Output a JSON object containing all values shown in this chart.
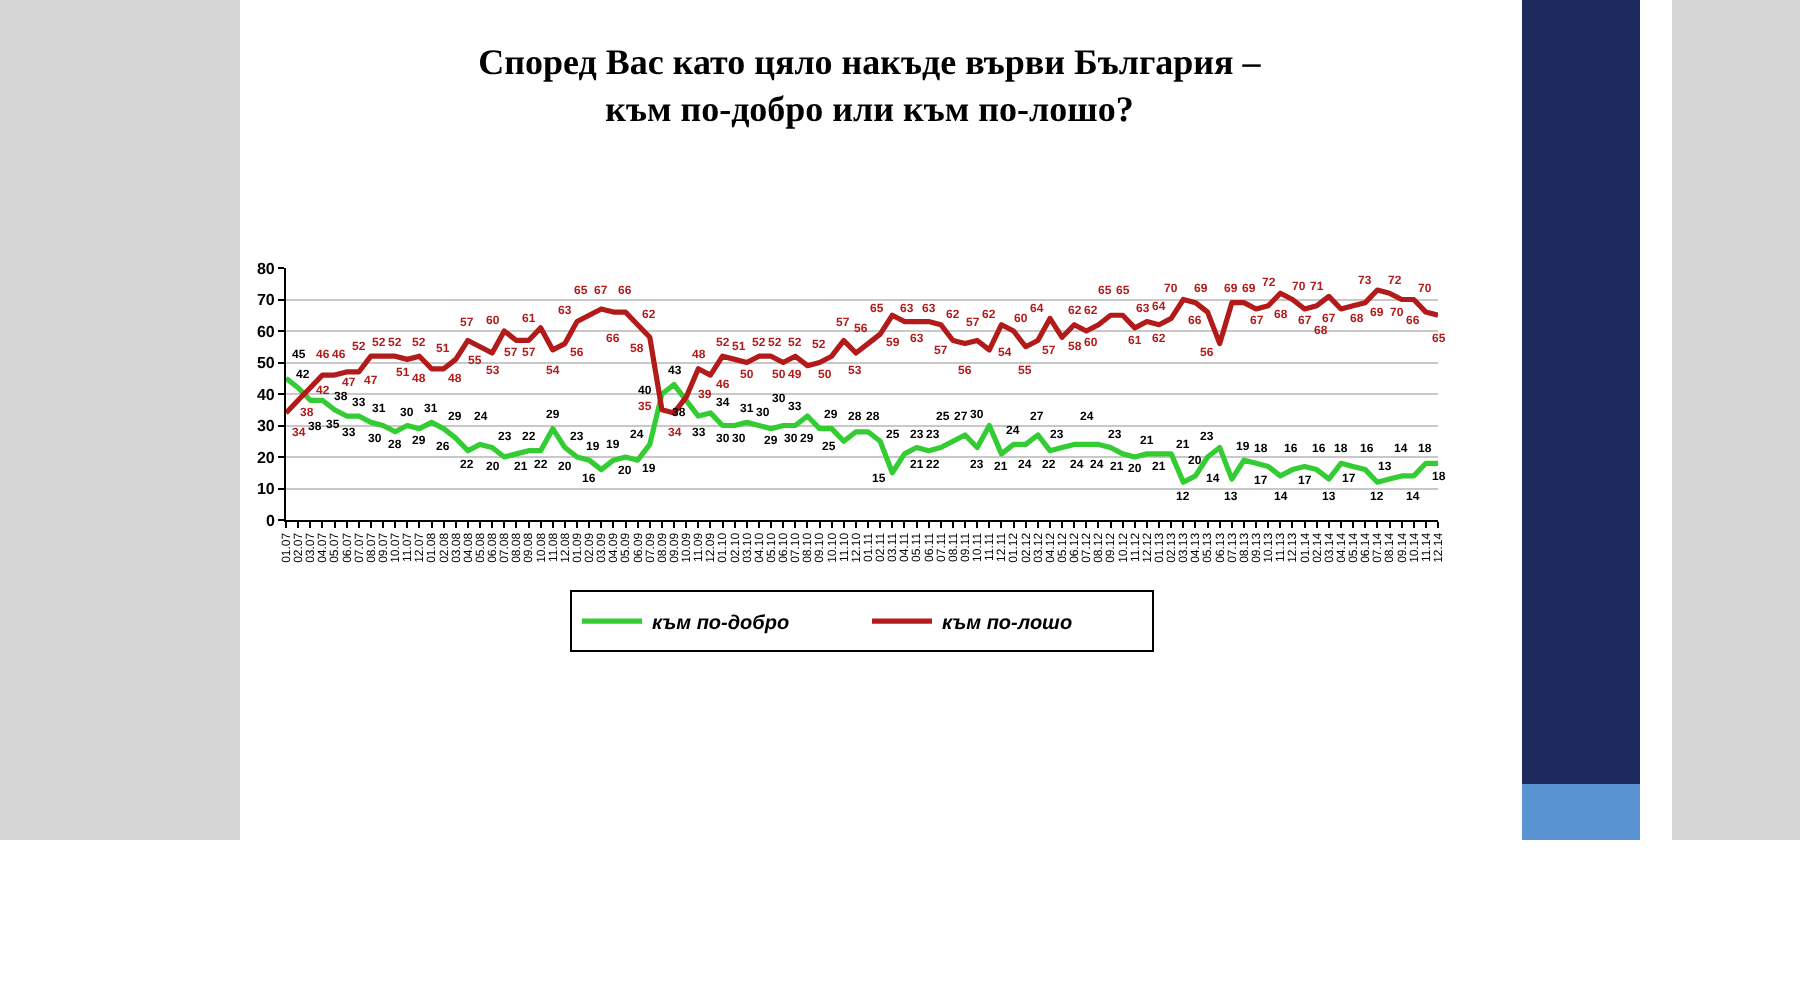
{
  "chart_data": {
    "type": "line",
    "title": "Според Вас като цяло накъде върви България –\nкъм по-добро или към по-лошо?",
    "categories": [
      "01.07",
      "02.07",
      "03.07",
      "04.07",
      "05.07",
      "06.07",
      "07.07",
      "08.07",
      "09.07",
      "10.07",
      "11.07",
      "12.07",
      "01.08",
      "02.08",
      "03.08",
      "04.08",
      "05.08",
      "06.08",
      "07.08",
      "08.08",
      "09.08",
      "10.08",
      "11.08",
      "12.08",
      "01.09",
      "02.09",
      "03.09",
      "04.09",
      "05.09",
      "06.09",
      "07.09",
      "08.09",
      "09.09",
      "10.09",
      "11.09",
      "12.09",
      "01.10",
      "02.10",
      "03.10",
      "04.10",
      "05.10",
      "06.10",
      "07.10",
      "08.10",
      "09.10",
      "10.10",
      "11.10",
      "12.10",
      "01.11",
      "02.11",
      "03.11",
      "04.11",
      "05.11",
      "06.11",
      "07.11",
      "08.11",
      "09.11",
      "10.11",
      "11.11",
      "12.11",
      "01.12",
      "02.12",
      "03.12",
      "04.12",
      "05.12",
      "06.12",
      "07.12",
      "08.12",
      "09.12",
      "10.12",
      "11.12",
      "12.12",
      "01.13",
      "02.13",
      "03.13",
      "04.13",
      "05.13",
      "06.13",
      "07.13",
      "08.13",
      "09.13",
      "10.13",
      "11.13",
      "12.13",
      "01.14",
      "02.14",
      "03.14",
      "04.14",
      "05.14",
      "06.14",
      "07.14",
      "08.14",
      "09.14",
      "10.14",
      "11.14",
      "12.14"
    ],
    "series": [
      {
        "name": "към по-добро",
        "color": "#33cc33",
        "values": [
          45,
          42,
          38,
          38,
          35,
          33,
          33,
          31,
          30,
          28,
          30,
          29,
          31,
          29,
          26,
          22,
          24,
          23,
          20,
          21,
          22,
          22,
          29,
          23,
          20,
          19,
          16,
          19,
          20,
          19,
          24,
          40,
          43,
          38,
          33,
          34,
          30,
          30,
          31,
          30,
          29,
          30,
          30,
          33,
          29,
          29,
          25,
          28,
          28,
          25,
          15,
          21,
          23,
          22,
          23,
          25,
          27,
          23,
          30,
          21,
          24,
          24,
          27,
          22,
          23,
          24,
          24,
          24,
          23,
          21,
          20,
          21,
          21,
          21,
          12,
          14,
          20,
          23,
          13,
          19,
          18,
          17,
          14,
          16,
          17,
          16,
          13,
          18,
          17,
          16,
          12,
          13,
          14,
          14,
          18,
          18
        ]
      },
      {
        "name": "към по-лошо",
        "color": "#b31b1b",
        "values": [
          34,
          38,
          42,
          46,
          46,
          47,
          47,
          52,
          52,
          52,
          51,
          52,
          48,
          48,
          51,
          57,
          55,
          53,
          60,
          57,
          57,
          61,
          54,
          56,
          63,
          65,
          67,
          66,
          66,
          62,
          58,
          35,
          34,
          39,
          48,
          46,
          52,
          51,
          50,
          52,
          52,
          50,
          52,
          49,
          50,
          52,
          57,
          53,
          56,
          59,
          65,
          63,
          63,
          63,
          62,
          57,
          56,
          57,
          54,
          62,
          60,
          55,
          57,
          64,
          58,
          62,
          60,
          62,
          65,
          65,
          61,
          63,
          62,
          64,
          70,
          69,
          66,
          56,
          69,
          69,
          67,
          68,
          72,
          70,
          67,
          68,
          71,
          67,
          68,
          69,
          73,
          72,
          70,
          70,
          66,
          65
        ]
      }
    ],
    "ylim": [
      0,
      80
    ],
    "yticks": [
      0,
      10,
      20,
      30,
      40,
      50,
      60,
      70,
      80
    ],
    "grid": "y",
    "legend": "bottom",
    "marker": "none",
    "line_style": "solid",
    "data_labels": true
  }
}
